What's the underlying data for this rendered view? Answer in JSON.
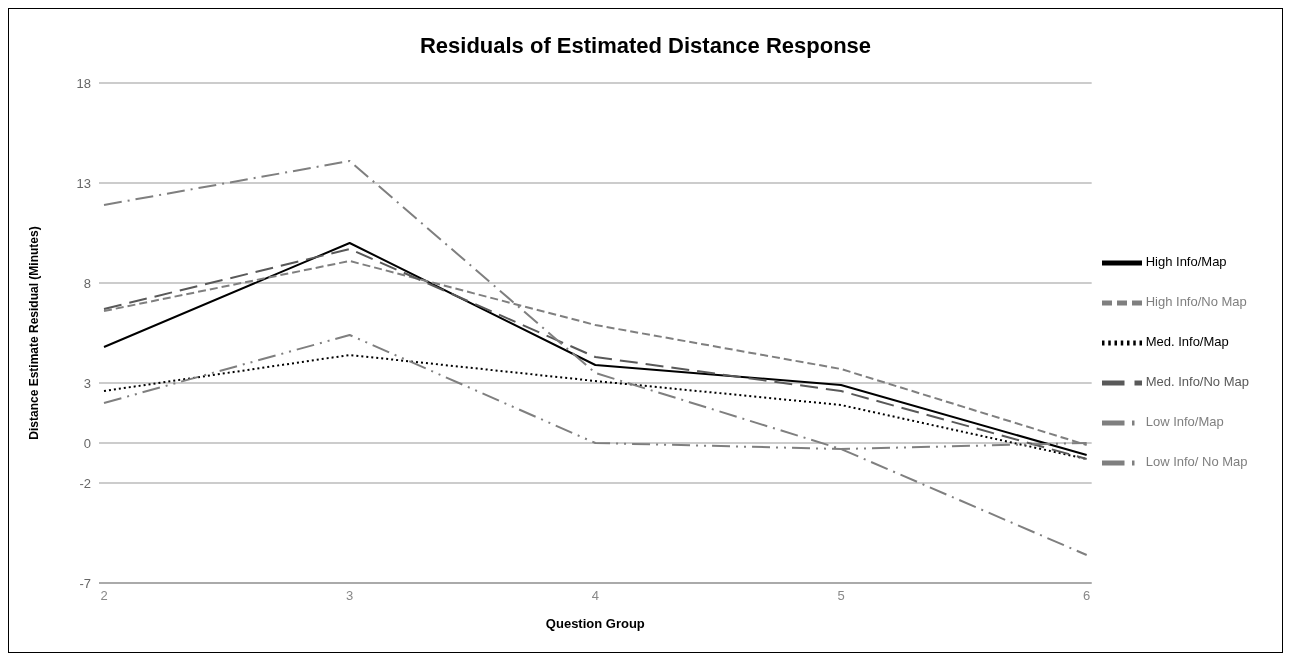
{
  "chart_data": {
    "type": "line",
    "title": "Residuals of Estimated Distance Response",
    "xlabel": "Question Group",
    "ylabel": "Distance Estimate Residual (Minutes)",
    "categories": [
      "2",
      "3",
      "4",
      "5",
      "6"
    ],
    "ylim": [
      -7,
      18
    ],
    "yticks": [
      -7,
      -2,
      0,
      3,
      8,
      13,
      18
    ],
    "grid": "y",
    "legend": "right",
    "marker": "none",
    "series": [
      {
        "name": "High Info/Map",
        "color": "#000000",
        "line_style": "solid",
        "values": [
          4.8,
          10.0,
          3.9,
          2.9,
          -0.6
        ]
      },
      {
        "name": "High Info/No Map",
        "color": "#7f7f7f",
        "line_style": "dashed",
        "values": [
          6.6,
          9.1,
          5.9,
          3.7,
          -0.1
        ]
      },
      {
        "name": "Med. Info/Map",
        "color": "#000000",
        "line_style": "dotted",
        "values": [
          2.6,
          4.4,
          3.1,
          1.9,
          -0.8
        ]
      },
      {
        "name": "Med. Info/No Map",
        "color": "#595959",
        "line_style": "dashed",
        "values": [
          6.7,
          9.7,
          4.3,
          2.6,
          -0.8
        ]
      },
      {
        "name": "Low Info/Map",
        "color": "#7f7f7f",
        "line_style": "dashed",
        "values": [
          2.0,
          5.4,
          0.0,
          -0.3,
          0.0
        ]
      },
      {
        "name": "Low Info/ No Map",
        "color": "#7f7f7f",
        "line_style": "dashed",
        "values": [
          11.9,
          14.1,
          3.5,
          -0.3,
          -5.6
        ]
      }
    ]
  }
}
